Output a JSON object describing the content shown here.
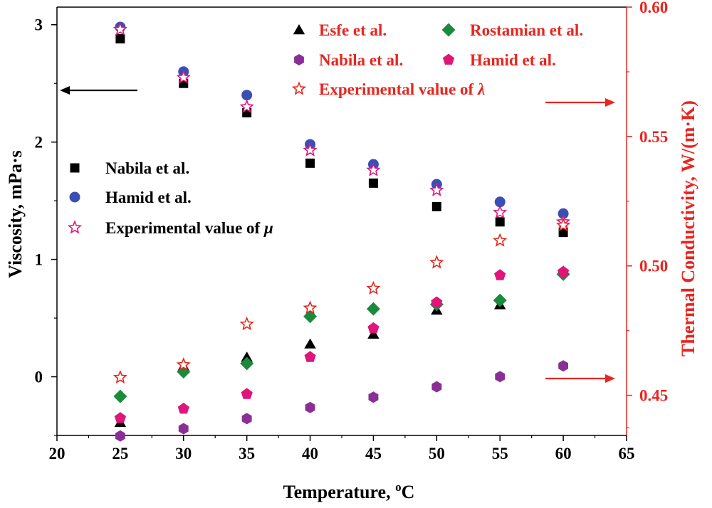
{
  "chart_data": {
    "type": "scatter",
    "x_axis": {
      "label": "Temperature, ",
      "label_sup": "o",
      "label_unit": "C",
      "range": [
        20,
        65
      ],
      "ticks": [
        20,
        25,
        30,
        35,
        40,
        45,
        50,
        55,
        60,
        65
      ]
    },
    "y_left": {
      "label": "Viscosity, mPa·s",
      "range": [
        -0.5,
        3.15
      ],
      "ticks": [
        0,
        1,
        2,
        3
      ],
      "color": "#000000"
    },
    "y_right": {
      "label": "Thermal Conductivity, W/(m·K)",
      "range": [
        0.4345,
        0.6
      ],
      "ticks": [
        0.45,
        0.5,
        0.55,
        0.6
      ],
      "tick_labels": [
        "0.45",
        "0.50",
        "0.55",
        "0.60"
      ],
      "color": "#e8251f"
    },
    "series": [
      {
        "name": "Nabila et al.",
        "axis": "left",
        "marker": "square",
        "color": "#000000",
        "x": [
          25,
          30,
          35,
          40,
          45,
          50,
          55,
          60
        ],
        "y": [
          2.88,
          2.5,
          2.25,
          1.82,
          1.65,
          1.45,
          1.32,
          1.23
        ]
      },
      {
        "name": "Hamid et al.",
        "axis": "left",
        "marker": "circle",
        "color": "#3a4fb5",
        "x": [
          25,
          30,
          35,
          40,
          45,
          50,
          55,
          60
        ],
        "y": [
          2.98,
          2.6,
          2.4,
          1.98,
          1.81,
          1.64,
          1.49,
          1.39
        ]
      },
      {
        "name": "Experimental value of ",
        "name_symbol": "μ",
        "axis": "left",
        "marker": "star-open",
        "color": "#e0157a",
        "x": [
          25,
          30,
          35,
          40,
          45,
          50,
          55,
          60
        ],
        "y": [
          2.96,
          2.55,
          2.3,
          1.93,
          1.76,
          1.59,
          1.4,
          1.32
        ]
      },
      {
        "name": "Esfe et al.",
        "axis": "right",
        "marker": "triangle",
        "color": "#000000",
        "x": [
          25,
          30,
          35,
          40,
          45,
          50,
          55,
          60
        ],
        "y": [
          0.4395,
          0.4613,
          0.4647,
          0.4698,
          0.4736,
          0.4829,
          0.485,
          0.498
        ]
      },
      {
        "name": "Rostamian et al.",
        "axis": "right",
        "marker": "diamond",
        "color": "#1a8a3c",
        "x": [
          25,
          30,
          35,
          40,
          45,
          50,
          55,
          60
        ],
        "y": [
          0.4496,
          0.4591,
          0.4623,
          0.4805,
          0.4834,
          0.4851,
          0.4867,
          0.4968
        ]
      },
      {
        "name": "Nabila et al.",
        "axis": "right",
        "marker": "hexagon",
        "color": "#8a2f96",
        "x": [
          25,
          30,
          35,
          40,
          45,
          50,
          55,
          60
        ],
        "y": [
          0.4343,
          0.4371,
          0.441,
          0.4453,
          0.4493,
          0.4533,
          0.4572,
          0.4614
        ]
      },
      {
        "name": "Hamid et al.",
        "axis": "right",
        "marker": "pentagon",
        "color": "#e0157a",
        "x": [
          25,
          30,
          35,
          40,
          45,
          50,
          55,
          60
        ],
        "y": [
          0.4412,
          0.4448,
          0.4505,
          0.4648,
          0.4759,
          0.4859,
          0.4964,
          0.4977
        ]
      },
      {
        "name": "Experimental value of ",
        "name_symbol": "λ",
        "axis": "right",
        "marker": "star-open",
        "color": "#e8251f",
        "x": [
          25,
          30,
          35,
          40,
          45,
          50,
          55,
          60
        ],
        "y": [
          0.4569,
          0.4618,
          0.4775,
          0.4837,
          0.4913,
          0.5013,
          0.5098,
          0.5157
        ]
      }
    ],
    "legend_left": {
      "placement": "middle-left",
      "entries": [
        0,
        1,
        2
      ]
    },
    "legend_right": {
      "placement": "top-right",
      "rows": [
        [
          3,
          4
        ],
        [
          5,
          6
        ],
        [
          7
        ]
      ]
    },
    "annotations": [
      {
        "type": "arrow",
        "direction": "left",
        "meaning": "left-axis series"
      },
      {
        "type": "arrow",
        "direction": "right",
        "meaning": "right-axis series"
      },
      {
        "type": "arrow",
        "direction": "right",
        "meaning": "right-axis series"
      }
    ]
  }
}
